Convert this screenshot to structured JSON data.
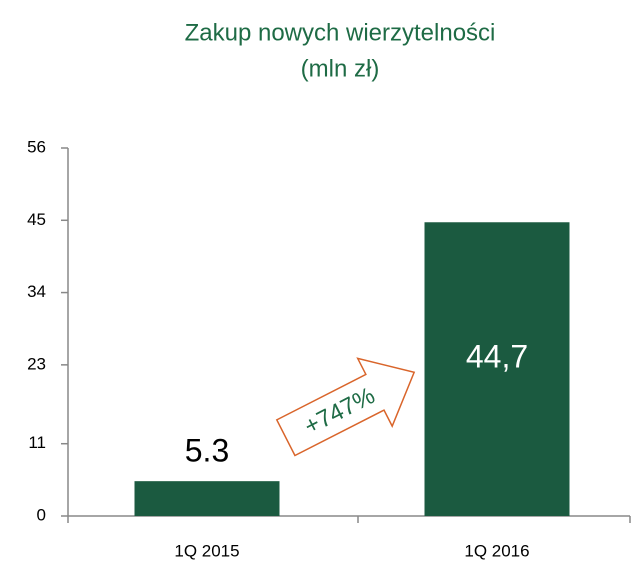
{
  "chart_data": {
    "type": "bar",
    "title": "Zakup nowych wierzytelności",
    "subtitle": "(mln zł)",
    "categories": [
      "1Q 2015",
      "1Q 2016"
    ],
    "values": [
      5.3,
      44.7
    ],
    "value_labels": [
      "5.3",
      "44,7"
    ],
    "color": "#1b5a40",
    "ylim": [
      0,
      56
    ],
    "yticks": [
      0,
      11,
      23,
      34,
      45,
      56
    ],
    "annotation": "+747%"
  }
}
